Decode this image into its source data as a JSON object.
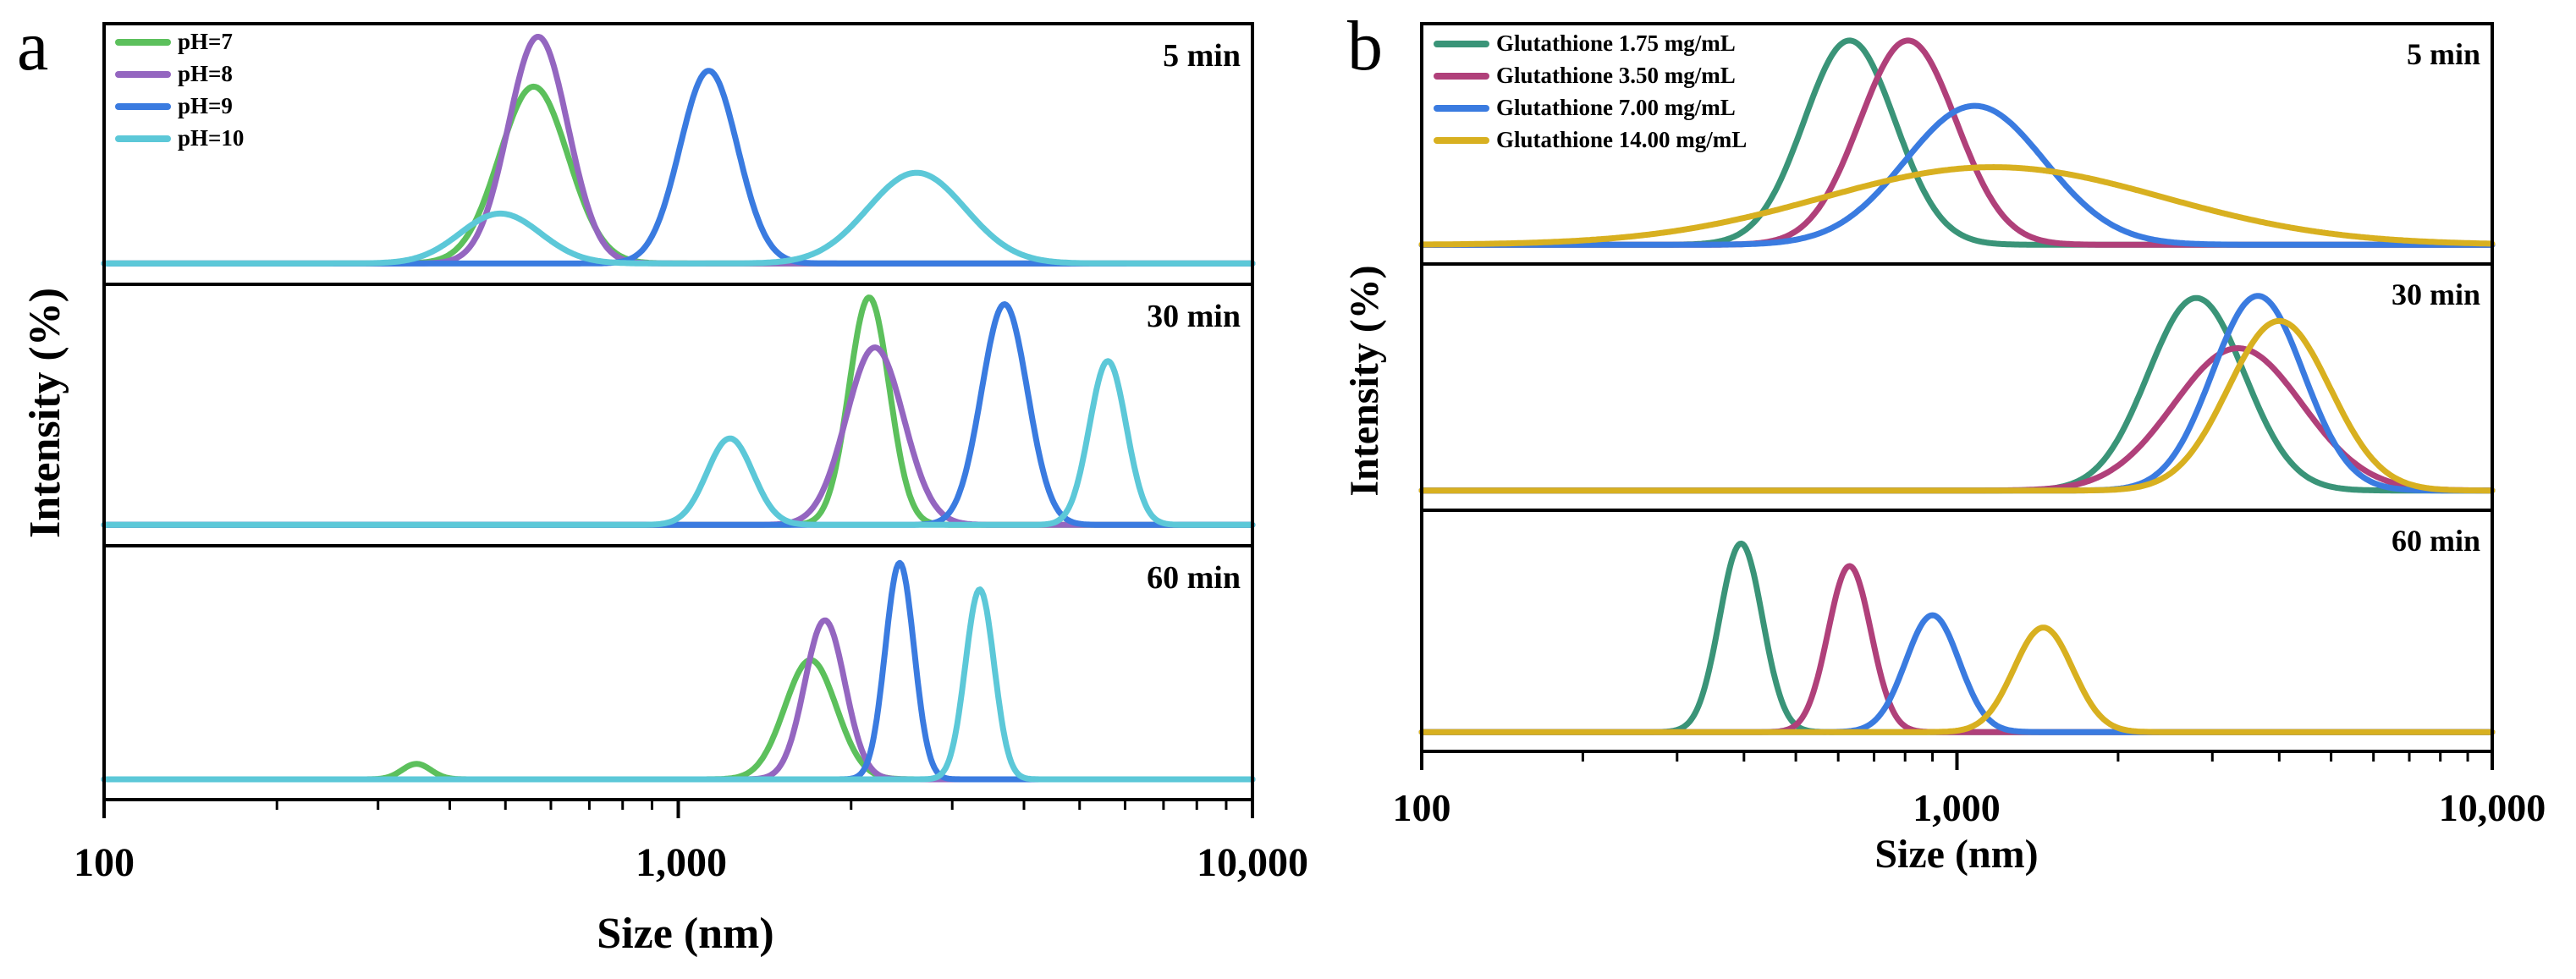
{
  "chart_data": [
    {
      "type": "line",
      "panel_label": "a",
      "xlabel": "Size (nm)",
      "ylabel": "Intensity (%)",
      "xscale": "log",
      "xlim": [
        100,
        10000
      ],
      "xticks": [
        100,
        1000,
        10000
      ],
      "xtick_labels": [
        "100",
        "1,000",
        "10,000"
      ],
      "legend_position": "top-left of first subpanel",
      "series": [
        {
          "name": "pH=7",
          "color": "#5cc05c"
        },
        {
          "name": "pH=8",
          "color": "#9466c0"
        },
        {
          "name": "pH=9",
          "color": "#3a7be0"
        },
        {
          "name": "pH=10",
          "color": "#5cc8d8"
        }
      ],
      "subpanels": [
        {
          "title": "5 min",
          "curves": [
            {
              "series": "pH=7",
              "peaks": [
                {
                  "center": 560,
                  "height": 0.78,
                  "width": 0.06
                }
              ]
            },
            {
              "series": "pH=8",
              "peaks": [
                {
                  "center": 570,
                  "height": 1.0,
                  "width": 0.052
                }
              ]
            },
            {
              "series": "pH=9",
              "peaks": [
                {
                  "center": 1130,
                  "height": 0.85,
                  "width": 0.05
                }
              ]
            },
            {
              "series": "pH=10",
              "peaks": [
                {
                  "center": 490,
                  "height": 0.22,
                  "width": 0.07
                },
                {
                  "center": 2600,
                  "height": 0.4,
                  "width": 0.085
                }
              ]
            }
          ]
        },
        {
          "title": "30 min",
          "curves": [
            {
              "series": "pH=7",
              "peaks": [
                {
                  "center": 2150,
                  "height": 1.0,
                  "width": 0.035
                }
              ]
            },
            {
              "series": "pH=8",
              "peaks": [
                {
                  "center": 2200,
                  "height": 0.78,
                  "width": 0.05
                }
              ]
            },
            {
              "series": "pH=9",
              "peaks": [
                {
                  "center": 3700,
                  "height": 0.97,
                  "width": 0.04
                }
              ]
            },
            {
              "series": "pH=10",
              "peaks": [
                {
                  "center": 1230,
                  "height": 0.38,
                  "width": 0.04
                },
                {
                  "center": 5600,
                  "height": 0.72,
                  "width": 0.032
                }
              ]
            }
          ]
        },
        {
          "title": "60 min",
          "curves": [
            {
              "series": "pH=7",
              "peaks": [
                {
                  "center": 350,
                  "height": 0.07,
                  "width": 0.025
                },
                {
                  "center": 1700,
                  "height": 0.54,
                  "width": 0.045
                }
              ]
            },
            {
              "series": "pH=8",
              "peaks": [
                {
                  "center": 1800,
                  "height": 0.72,
                  "width": 0.035
                }
              ]
            },
            {
              "series": "pH=9",
              "peaks": [
                {
                  "center": 2430,
                  "height": 0.98,
                  "width": 0.025
                }
              ]
            },
            {
              "series": "pH=10",
              "peaks": [
                {
                  "center": 3350,
                  "height": 0.86,
                  "width": 0.025
                }
              ]
            }
          ]
        }
      ]
    },
    {
      "type": "line",
      "panel_label": "b",
      "xlabel": "Size (nm)",
      "ylabel": "Intensity (%)",
      "xscale": "log",
      "xlim": [
        100,
        10000
      ],
      "xticks": [
        100,
        1000,
        10000
      ],
      "xtick_labels": [
        "100",
        "1,000",
        "10,000"
      ],
      "legend_position": "top-left of first subpanel",
      "series": [
        {
          "name": "Glutathione 1.75 mg/mL",
          "color": "#3a9478"
        },
        {
          "name": "Glutathione 3.50 mg/mL",
          "color": "#b0407a"
        },
        {
          "name": "Glutathione 7.00 mg/mL",
          "color": "#3a7be0"
        },
        {
          "name": "Glutathione 14.00 mg/mL",
          "color": "#d8b020"
        }
      ],
      "subpanels": [
        {
          "title": "5 min",
          "curves": [
            {
              "series": "Glutathione 1.75 mg/mL",
              "peaks": [
                {
                  "center": 630,
                  "height": 1.0,
                  "width": 0.085
                }
              ]
            },
            {
              "series": "Glutathione 3.50 mg/mL",
              "peaks": [
                {
                  "center": 810,
                  "height": 1.0,
                  "width": 0.09
                }
              ]
            },
            {
              "series": "Glutathione 7.00 mg/mL",
              "peaks": [
                {
                  "center": 1080,
                  "height": 0.68,
                  "width": 0.13
                }
              ]
            },
            {
              "series": "Glutathione 14.00 mg/mL",
              "peaks": [
                {
                  "center": 1170,
                  "height": 0.38,
                  "width": 0.32
                }
              ]
            }
          ]
        },
        {
          "title": "30 min",
          "curves": [
            {
              "series": "Glutathione 1.75 mg/mL",
              "peaks": [
                {
                  "center": 2800,
                  "height": 0.92,
                  "width": 0.09
                }
              ]
            },
            {
              "series": "Glutathione 3.50 mg/mL",
              "peaks": [
                {
                  "center": 3350,
                  "height": 0.68,
                  "width": 0.12
                }
              ]
            },
            {
              "series": "Glutathione 7.00 mg/mL",
              "peaks": [
                {
                  "center": 3650,
                  "height": 0.93,
                  "width": 0.085
                }
              ]
            },
            {
              "series": "Glutathione 14.00 mg/mL",
              "peaks": [
                {
                  "center": 4000,
                  "height": 0.81,
                  "width": 0.095
                }
              ]
            }
          ]
        },
        {
          "title": "60 min",
          "curves": [
            {
              "series": "Glutathione 1.75 mg/mL",
              "peaks": [
                {
                  "center": 395,
                  "height": 0.92,
                  "width": 0.04
                }
              ]
            },
            {
              "series": "Glutathione 3.50 mg/mL",
              "peaks": [
                {
                  "center": 630,
                  "height": 0.81,
                  "width": 0.04
                }
              ]
            },
            {
              "series": "Glutathione 7.00 mg/mL",
              "peaks": [
                {
                  "center": 900,
                  "height": 0.57,
                  "width": 0.05
                }
              ]
            },
            {
              "series": "Glutathione 14.00 mg/mL",
              "peaks": [
                {
                  "center": 1450,
                  "height": 0.51,
                  "width": 0.055
                }
              ]
            }
          ]
        }
      ]
    }
  ]
}
